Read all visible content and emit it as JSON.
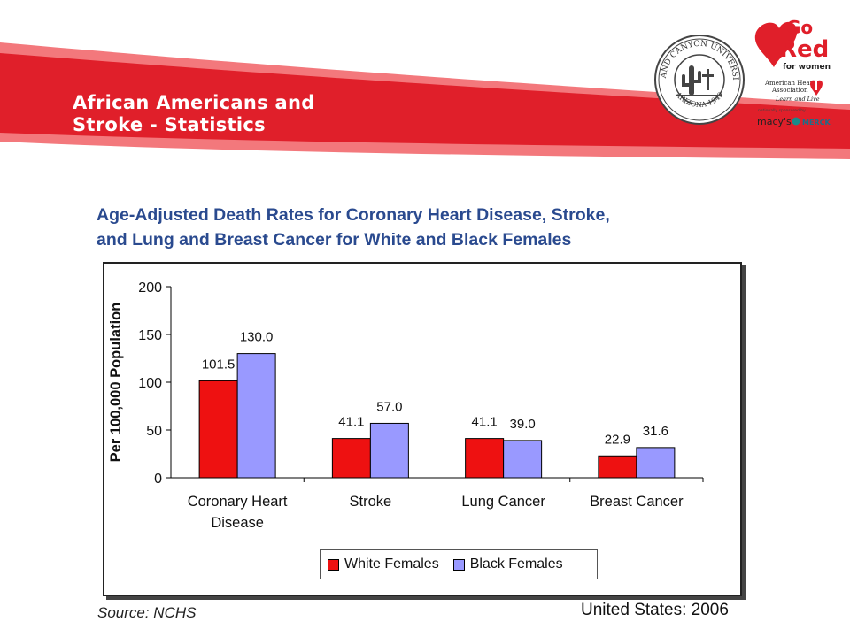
{
  "slide": {
    "title_line1": "African Americans and",
    "title_line2": "Stroke - Statistics"
  },
  "logos": {
    "seal_text_top": "GRAND CANYON UNIVERSITY",
    "seal_text_bottom": "ARIZONA 1949",
    "gored_go": "Go",
    "gored_red": "Red",
    "gored_for_women": "for women",
    "aha_name_1": "American Heart",
    "aha_name_2": "Association",
    "aha_tagline": "Learn and Live",
    "sponsored_by": "nationally sponsored by",
    "sponsor_1": "macy's",
    "sponsor_2": "MERCK"
  },
  "colors": {
    "banner_red": "#e01f2a",
    "banner_light": "#f3787c",
    "white_females": "#ee1111",
    "black_females": "#9999ff",
    "title_blue": "#2a4a8f"
  },
  "chart_data": {
    "type": "bar",
    "title_line1": "Age-Adjusted Death Rates for Coronary Heart Disease, Stroke,",
    "title_line2": "and Lung and Breast Cancer for White and Black Females",
    "ylabel": "Per 100,000 Population",
    "xlabel": "",
    "ylim": [
      0,
      200
    ],
    "yticks": [
      0,
      50,
      100,
      150,
      200
    ],
    "categories": [
      [
        "Coronary Heart",
        "Disease"
      ],
      [
        "Stroke"
      ],
      [
        "Lung Cancer"
      ],
      [
        "Breast Cancer"
      ]
    ],
    "series": [
      {
        "name": "White Females",
        "values": [
          101.5,
          41.1,
          41.1,
          22.9
        ],
        "labels": [
          "101.5",
          "41.1",
          "41.1",
          "22.9"
        ],
        "color": "#ee1111"
      },
      {
        "name": "Black Females",
        "values": [
          130.0,
          57.0,
          39.0,
          31.6
        ],
        "labels": [
          "130.0",
          "57.0",
          "39.0",
          "31.6"
        ],
        "color": "#9999ff"
      }
    ],
    "legend": "bottom-center",
    "grid": false
  },
  "footer": {
    "source": "Source: NCHS",
    "region": "United States: 2006"
  }
}
